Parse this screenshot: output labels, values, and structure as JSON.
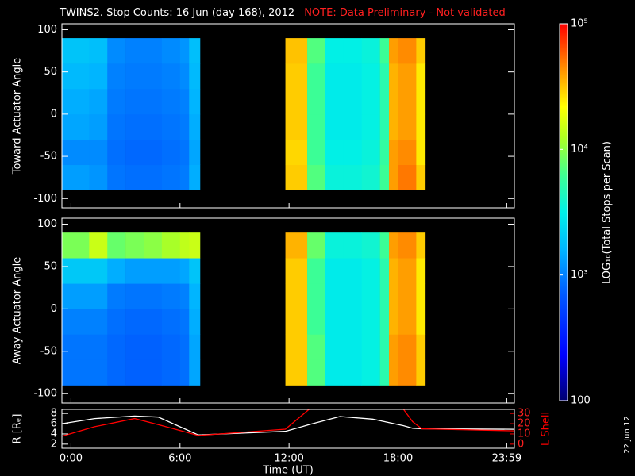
{
  "header": {
    "title": "TWINS2. Stop Counts: 16 Jun (day 168), 2012",
    "note": "NOTE: Data Preliminary - Not validated",
    "date": "22 Jun 12"
  },
  "colorbar": {
    "label": "LOG₁₀(Total Stops per Scan)",
    "log": true,
    "lim": [
      100,
      100000
    ],
    "ticks": [
      {
        "value": 100000,
        "label": "10⁵"
      },
      {
        "value": 10000,
        "label": "10⁴"
      },
      {
        "value": 1000,
        "label": "10³"
      },
      100
    ]
  },
  "chart_data": [
    {
      "type": "heatmap",
      "ylabel": "Toward Actuator Angle",
      "x_edges": [
        -0.5,
        1,
        2,
        3,
        4,
        5,
        6,
        6.5,
        7.1,
        11.8,
        13,
        14,
        15,
        16,
        17,
        17.5,
        18,
        19,
        19.5
      ],
      "y_edges": [
        -90,
        -60,
        -30,
        0,
        30,
        60,
        90
      ],
      "z": [
        [
          1300,
          1200,
          900,
          850,
          850,
          900,
          950,
          1500,
          null,
          30000,
          7000,
          3500,
          3500,
          3800,
          6000,
          40000,
          50000,
          30000
        ],
        [
          1100,
          1100,
          850,
          800,
          800,
          850,
          900,
          1400,
          null,
          28000,
          6000,
          3200,
          3200,
          3500,
          5500,
          40000,
          45000,
          25000
        ],
        [
          1400,
          1300,
          900,
          850,
          850,
          900,
          950,
          1500,
          null,
          30000,
          6000,
          3000,
          3000,
          3300,
          5000,
          35000,
          40000,
          25000
        ],
        [
          1500,
          1400,
          950,
          900,
          900,
          950,
          1000,
          1600,
          null,
          30000,
          6000,
          3000,
          3000,
          3300,
          5000,
          35000,
          40000,
          25000
        ],
        [
          1700,
          1600,
          1000,
          950,
          950,
          1000,
          1100,
          1700,
          null,
          30000,
          6000,
          3000,
          3000,
          3300,
          5000,
          35000,
          40000,
          25000
        ],
        [
          1900,
          1800,
          1100,
          1000,
          1000,
          1100,
          1200,
          1800,
          null,
          32000,
          7000,
          3200,
          3200,
          3500,
          6000,
          40000,
          45000,
          30000
        ]
      ],
      "xlim": [
        -0.5,
        24.4
      ],
      "ylim": [
        -111,
        107
      ],
      "yticks": [
        -100,
        -50,
        0,
        50,
        100
      ]
    },
    {
      "type": "heatmap",
      "ylabel": "Away Actuator Angle",
      "x_edges": [
        -0.5,
        1,
        2,
        3,
        4,
        5,
        6,
        6.5,
        7.1,
        11.8,
        13,
        14,
        15,
        16,
        17,
        17.5,
        18,
        19,
        19.5
      ],
      "y_edges": [
        -90,
        -60,
        -30,
        0,
        30,
        60,
        90
      ],
      "z": [
        [
          900,
          900,
          800,
          750,
          750,
          800,
          850,
          1400,
          null,
          30000,
          7000,
          3000,
          3000,
          3300,
          5000,
          40000,
          45000,
          30000
        ],
        [
          900,
          900,
          800,
          750,
          750,
          800,
          850,
          1400,
          null,
          30000,
          7000,
          3000,
          3000,
          3300,
          5000,
          40000,
          45000,
          30000
        ],
        [
          1000,
          1000,
          850,
          800,
          800,
          850,
          900,
          1500,
          null,
          30000,
          6000,
          3000,
          3000,
          3300,
          5000,
          35000,
          40000,
          25000
        ],
        [
          1300,
          1300,
          950,
          900,
          900,
          950,
          1000,
          1600,
          null,
          30000,
          6000,
          3000,
          3000,
          3300,
          5000,
          35000,
          40000,
          25000
        ],
        [
          2000,
          2000,
          1500,
          1300,
          1300,
          1300,
          1400,
          1900,
          null,
          30000,
          6000,
          3000,
          3000,
          3300,
          5000,
          35000,
          40000,
          25000
        ],
        [
          9000,
          15000,
          8000,
          9000,
          10000,
          12000,
          14000,
          15000,
          null,
          35000,
          8000,
          3500,
          3500,
          3800,
          6000,
          40000,
          45000,
          30000
        ]
      ],
      "xlim": [
        -0.5,
        24.4
      ],
      "ylim": [
        -111,
        107
      ],
      "yticks": [
        -100,
        -50,
        0,
        50,
        100
      ]
    },
    {
      "type": "line",
      "xlabel": "Time (UT)",
      "x": [
        -0.5,
        1.3,
        3.5,
        4.8,
        7.0,
        11.8,
        13.1,
        14.8,
        16.6,
        18.3,
        18.8,
        19.3,
        24.4
      ],
      "series": [
        {
          "name": "R [Rₑ]",
          "color": "#ffffff",
          "values": [
            6.0,
            7.0,
            7.5,
            7.3,
            3.8,
            4.5,
            5.8,
            7.4,
            6.9,
            5.6,
            5.1,
            5.0,
            4.9
          ]
        },
        {
          "name": "L Shell",
          "color": "#ff0000",
          "axis": "y2",
          "values": [
            7.7,
            17,
            25,
            19,
            8.5,
            14.6,
            34,
            null,
            null,
            34,
            22,
            15,
            13
          ]
        }
      ],
      "xlim": [
        -0.5,
        24.4
      ],
      "ylim": [
        1.2,
        8.8
      ],
      "yticks": [
        2,
        4,
        6,
        8
      ],
      "y2lim": [
        -4,
        34
      ],
      "y2ticks": [
        0,
        10,
        20,
        30
      ],
      "xticks": [
        {
          "value": 0,
          "label": "0:00"
        },
        {
          "value": 6,
          "label": "6:00"
        },
        {
          "value": 12,
          "label": "12:00"
        },
        {
          "value": 18,
          "label": "18:00"
        },
        {
          "value": 23.98,
          "label": "23:59"
        }
      ]
    }
  ]
}
